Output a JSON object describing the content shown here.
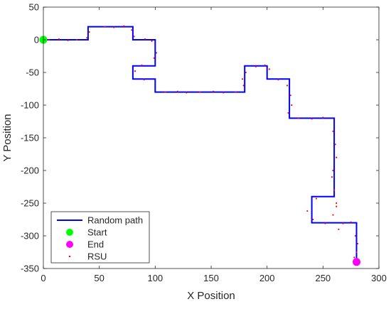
{
  "chart_data": {
    "type": "line",
    "xlabel": "X Position",
    "ylabel": "Y Position",
    "xlim": [
      0,
      300
    ],
    "ylim": [
      -350,
      50
    ],
    "xticks": [
      0,
      50,
      100,
      150,
      200,
      250,
      300
    ],
    "yticks": [
      50,
      0,
      -50,
      -100,
      -150,
      -200,
      -250,
      -300,
      -350
    ],
    "grid": false,
    "legend_position": "bottom-left",
    "legend": [
      "Random path",
      "Start",
      "End",
      "RSU"
    ],
    "series": [
      {
        "name": "Random path",
        "color": "#0000ff",
        "x": [
          0,
          40,
          40,
          80,
          80,
          100,
          100,
          80,
          80,
          100,
          100,
          180,
          180,
          200,
          200,
          220,
          220,
          260,
          260,
          240,
          240,
          260,
          260,
          280,
          280
        ],
        "y": [
          0,
          0,
          20,
          20,
          0,
          0,
          -40,
          -40,
          -60,
          -60,
          -80,
          -80,
          -40,
          -40,
          -60,
          -60,
          -120,
          -120,
          -240,
          -240,
          -280,
          -280,
          -280,
          -280,
          -340
        ]
      },
      {
        "name": "Start",
        "color": "#00ff00",
        "x": [
          0
        ],
        "y": [
          0
        ]
      },
      {
        "name": "End",
        "color": "#ff00ff",
        "x": [
          280
        ],
        "y": [
          -340
        ]
      },
      {
        "name": "RSU",
        "color": "#ff0000",
        "x": [
          5,
          14,
          22,
          30,
          39,
          41,
          55,
          63,
          72,
          79,
          81,
          91,
          97,
          101,
          99,
          88,
          82,
          90,
          109,
          120,
          128,
          140,
          152,
          161,
          172,
          178,
          181,
          179,
          190,
          198,
          202,
          210,
          218,
          221,
          222,
          219,
          228,
          240,
          250,
          259,
          261,
          262,
          259,
          258,
          260,
          262,
          244,
          236,
          241,
          252,
          259,
          262,
          264,
          268,
          275,
          279,
          281,
          280,
          278
        ],
        "y": [
          0,
          1,
          -1,
          0,
          3,
          12,
          20,
          19,
          21,
          15,
          5,
          1,
          -2,
          -20,
          -28,
          -39,
          -48,
          -61,
          -80,
          -79,
          -81,
          -80,
          -79,
          -81,
          -80,
          -60,
          -50,
          -70,
          -41,
          -39,
          -45,
          -61,
          -70,
          -85,
          -100,
          -112,
          -120,
          -121,
          -119,
          -140,
          -160,
          -180,
          -200,
          -210,
          -230,
          -250,
          -243,
          -262,
          -275,
          -281,
          -268,
          -255,
          -290,
          -281,
          -279,
          -300,
          -312,
          -325,
          -333
        ]
      }
    ]
  }
}
